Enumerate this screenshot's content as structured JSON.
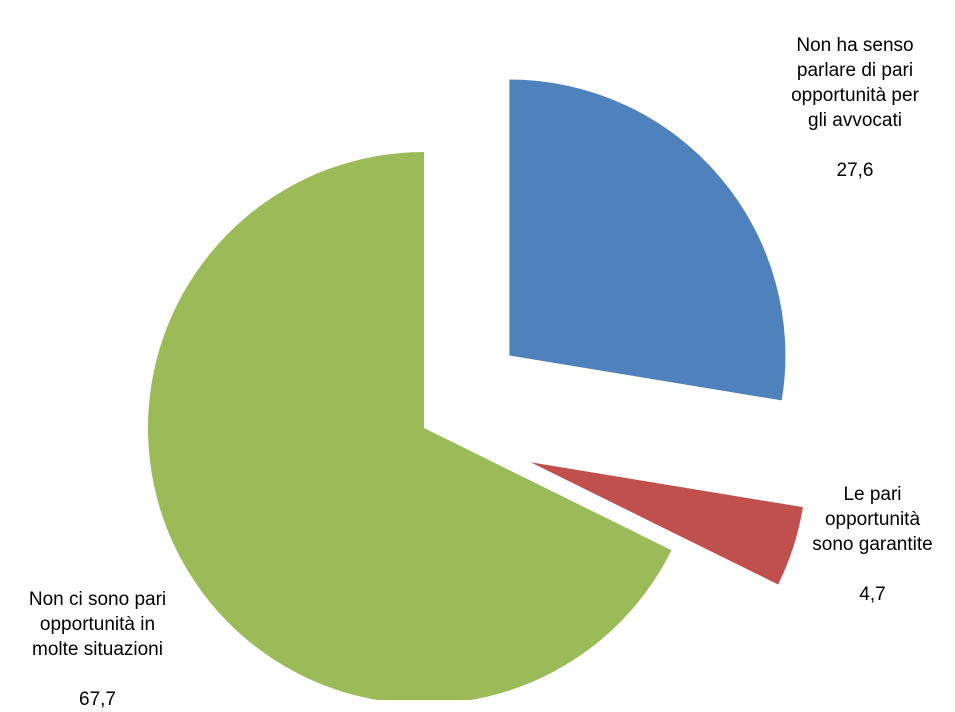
{
  "chart_data": {
    "type": "pie",
    "title": "",
    "slices": [
      {
        "label": "Non ha senso\nparlare di pari\nopportunità per\ngli avvocati",
        "value": 27.6,
        "value_label": "27,6",
        "color": "#4F81BD",
        "exploded": true
      },
      {
        "label": "Le pari\nopportunità\nsono garantite",
        "value": 4.7,
        "value_label": "4,7",
        "color": "#C0504D",
        "exploded": true
      },
      {
        "label": "Non ci sono pari\nopportunità in\nmolte situazioni",
        "value": 67.7,
        "value_label": "67,7",
        "color": "#9BBB59",
        "exploded": false
      }
    ],
    "legend": "none",
    "start_angle": "12 o'clock",
    "direction": "clockwise"
  }
}
